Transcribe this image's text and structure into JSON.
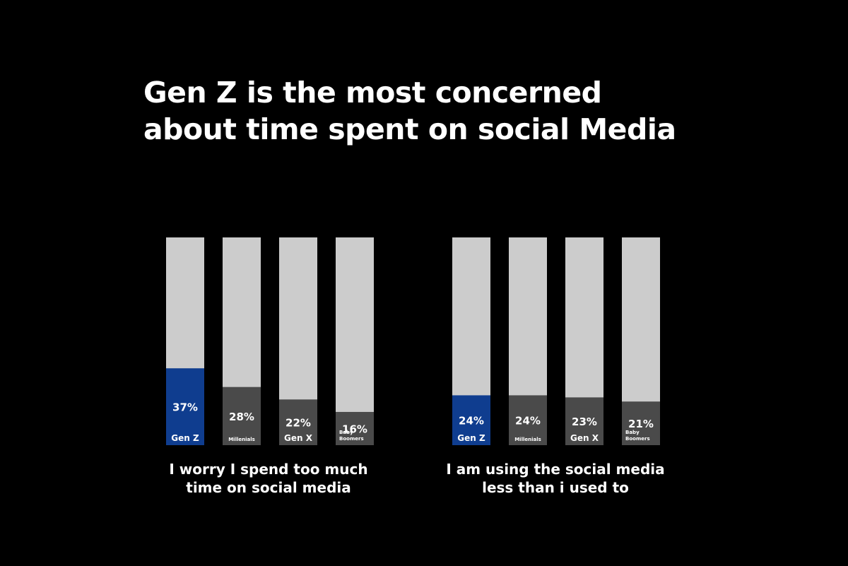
{
  "title_lines": [
    "Gen Z is the most concerned",
    "about time spent on social Media"
  ],
  "colors": {
    "background": "#000000",
    "highlight": "#0f3d8f",
    "bar_fill": "#4a4a4a",
    "bar_track": "#cccccc",
    "text": "#ffffff"
  },
  "chart_data": [
    {
      "type": "bar",
      "stacked_to_total": 100,
      "caption_lines": [
        "I worry I spend too much",
        "time on social media"
      ],
      "categories": [
        "Gen Z",
        "Millenials",
        "Gen X",
        "Baby Boomers"
      ],
      "value_labels": [
        "37%",
        "28%",
        "22%",
        "16%"
      ],
      "values": [
        37,
        28,
        22,
        16
      ],
      "highlight_index": 0,
      "ylim": [
        0,
        100
      ]
    },
    {
      "type": "bar",
      "stacked_to_total": 100,
      "caption_lines": [
        "I am using the social media",
        "less than i used to"
      ],
      "categories": [
        "Gen Z",
        "Millenials",
        "Gen X",
        "Baby Boomers"
      ],
      "value_labels": [
        "24%",
        "24%",
        "23%",
        "21%"
      ],
      "values": [
        24,
        24,
        23,
        21
      ],
      "highlight_index": 0,
      "ylim": [
        0,
        100
      ]
    }
  ]
}
